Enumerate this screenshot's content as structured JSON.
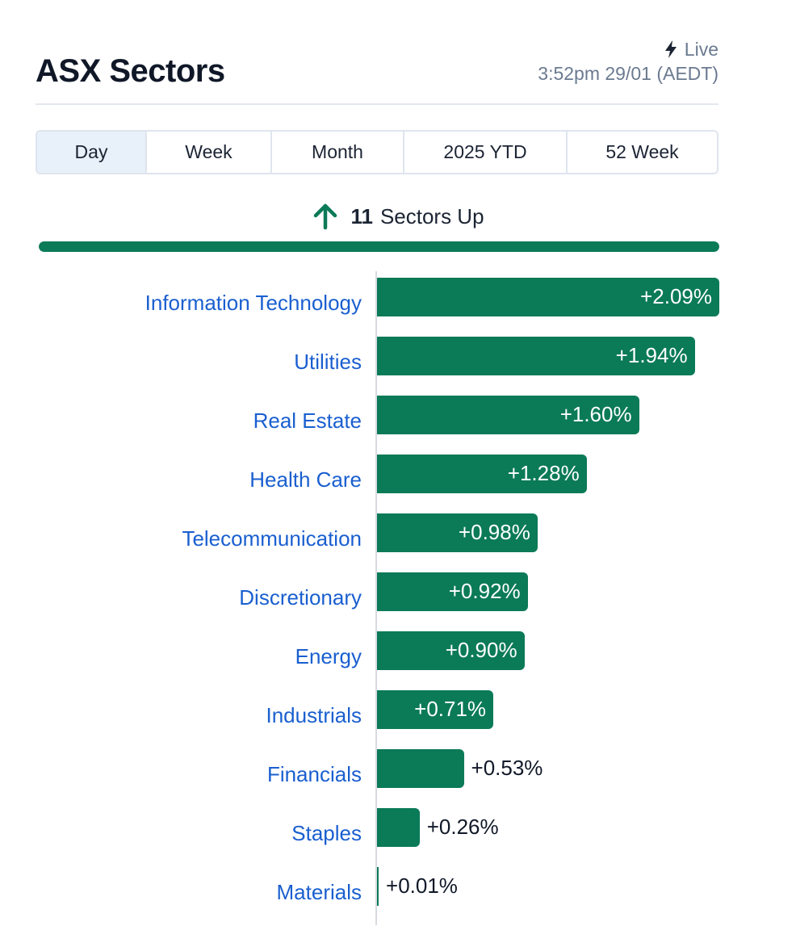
{
  "header": {
    "title": "ASX Sectors",
    "live_label": "Live",
    "timestamp": "3:52pm 29/01 (AEDT)"
  },
  "tabs": [
    {
      "label": "Day",
      "active": true
    },
    {
      "label": "Week",
      "active": false
    },
    {
      "label": "Month",
      "active": false
    },
    {
      "label": "2025 YTD",
      "active": false
    },
    {
      "label": "52 Week",
      "active": false
    }
  ],
  "summary": {
    "count": "11",
    "label": "Sectors Up",
    "up_fraction": 1.0
  },
  "colors": {
    "positive": "#0b7a57",
    "link": "#1a5fd0"
  },
  "chart_data": {
    "type": "bar",
    "orientation": "horizontal",
    "categories": [
      "Information Technology",
      "Utilities",
      "Real Estate",
      "Health Care",
      "Telecommunication",
      "Discretionary",
      "Energy",
      "Industrials",
      "Financials",
      "Staples",
      "Materials"
    ],
    "values": [
      2.09,
      1.94,
      1.6,
      1.28,
      0.98,
      0.92,
      0.9,
      0.71,
      0.53,
      0.26,
      0.01
    ],
    "value_labels": [
      "+2.09%",
      "+1.94%",
      "+1.60%",
      "+1.28%",
      "+0.98%",
      "+0.92%",
      "+0.90%",
      "+0.71%",
      "+0.53%",
      "+0.26%",
      "+0.01%"
    ],
    "xlim": [
      0,
      2.09
    ]
  }
}
